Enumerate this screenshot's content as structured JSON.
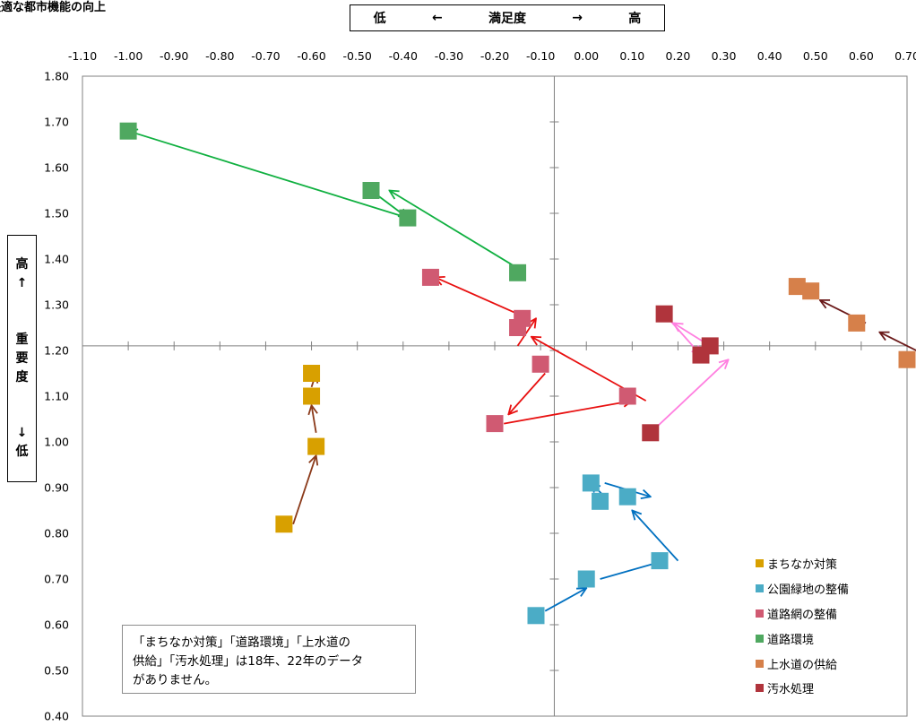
{
  "header": {
    "title": "快適な都市機能の向上",
    "satisfaction": {
      "low": "低",
      "arrow_left": "←",
      "label": "満足度",
      "arrow_right": "→",
      "high": "高"
    },
    "importance": {
      "high": "高",
      "arrow_up": "↑",
      "label_chars": [
        "重",
        "要",
        "度"
      ],
      "arrow_down": "↓",
      "low": "低"
    }
  },
  "note": {
    "lines": [
      "「まちなか対策」「道路環境」「上水道の",
      "供給」「汚水処理」は18年、22年のデータ",
      "がありません。"
    ]
  },
  "chart_data": {
    "type": "scatter",
    "title": "快適な都市機能の向上",
    "xlim": [
      -1.1,
      0.7
    ],
    "ylim": [
      0.4,
      1.8
    ],
    "x_ticks": [
      "-1.10",
      "-1.00",
      "-0.90",
      "-0.80",
      "-0.70",
      "-0.60",
      "-0.50",
      "-0.40",
      "-0.30",
      "-0.20",
      "-0.10",
      "0.00",
      "0.10",
      "0.20",
      "0.30",
      "0.40",
      "0.50",
      "0.60",
      "0.70"
    ],
    "y_ticks": [
      "1.80",
      "1.70",
      "1.60",
      "1.50",
      "1.40",
      "1.30",
      "1.20",
      "1.10",
      "1.00",
      "0.90",
      "0.80",
      "0.70",
      "0.60",
      "0.50",
      "0.40"
    ],
    "axis_cross": {
      "x": -0.07,
      "y": 1.21
    },
    "legend_position": "bottom-right",
    "series": [
      {
        "name": "まちなか対策",
        "color": "#D8A000",
        "arrow_color": "#8B3A1A",
        "points": [
          [
            -0.66,
            0.82
          ],
          [
            -0.59,
            0.99
          ],
          [
            -0.6,
            1.1
          ],
          [
            -0.6,
            1.15
          ]
        ],
        "arrows": [
          [
            -0.64,
            0.82,
            -0.59,
            0.97
          ],
          [
            -0.59,
            1.02,
            -0.6,
            1.08
          ],
          [
            -0.6,
            1.12,
            -0.59,
            1.15
          ]
        ]
      },
      {
        "name": "公園緑地の整備",
        "color": "#4BACC6",
        "arrow_color": "#0070C0",
        "points": [
          [
            -0.11,
            0.62
          ],
          [
            0.0,
            0.7
          ],
          [
            0.16,
            0.74
          ],
          [
            0.09,
            0.88
          ],
          [
            0.03,
            0.87
          ],
          [
            0.01,
            0.91
          ]
        ],
        "arrows": [
          [
            -0.09,
            0.63,
            0.0,
            0.68
          ],
          [
            0.03,
            0.7,
            0.17,
            0.74
          ],
          [
            0.2,
            0.74,
            0.1,
            0.85
          ],
          [
            0.04,
            0.88,
            0.01,
            0.91
          ],
          [
            0.04,
            0.91,
            0.14,
            0.88
          ]
        ]
      },
      {
        "name": "道路網の整備",
        "color": "#D05A72",
        "arrow_color": "#E81010",
        "points": [
          [
            -0.2,
            1.04
          ],
          [
            0.09,
            1.1
          ],
          [
            -0.1,
            1.17
          ],
          [
            -0.15,
            1.25
          ],
          [
            -0.14,
            1.27
          ],
          [
            -0.34,
            1.36
          ]
        ],
        "arrows": [
          [
            -0.18,
            1.04,
            0.1,
            1.09
          ],
          [
            -0.09,
            1.15,
            -0.17,
            1.06
          ],
          [
            0.13,
            1.09,
            -0.12,
            1.23
          ],
          [
            -0.15,
            1.21,
            -0.11,
            1.27
          ],
          [
            -0.15,
            1.28,
            -0.33,
            1.36
          ]
        ]
      },
      {
        "name": "道路環境",
        "color": "#4FA860",
        "arrow_color": "#10B040",
        "points": [
          [
            -1.0,
            1.68
          ],
          [
            -0.47,
            1.55
          ],
          [
            -0.39,
            1.49
          ],
          [
            -0.15,
            1.37
          ]
        ],
        "arrows": [
          [
            -0.15,
            1.38,
            -0.43,
            1.55
          ],
          [
            -0.47,
            1.55,
            -0.39,
            1.49
          ],
          [
            -0.39,
            1.49,
            -1.0,
            1.68
          ]
        ]
      },
      {
        "name": "上水道の供給",
        "color": "#D6804A",
        "arrow_color": "#6B1A1A",
        "points": [
          [
            0.7,
            1.18
          ],
          [
            0.59,
            1.26
          ],
          [
            0.49,
            1.33
          ],
          [
            0.46,
            1.34
          ]
        ],
        "arrows": [
          [
            0.74,
            1.19,
            0.64,
            1.24
          ],
          [
            0.61,
            1.26,
            0.51,
            1.31
          ]
        ]
      },
      {
        "name": "汚水処理",
        "color": "#B0343C",
        "arrow_color": "#FF80E0",
        "points": [
          [
            0.14,
            1.02
          ],
          [
            0.27,
            1.21
          ],
          [
            0.25,
            1.19
          ],
          [
            0.17,
            1.28
          ]
        ],
        "arrows": [
          [
            0.14,
            1.02,
            0.31,
            1.18
          ],
          [
            0.17,
            1.28,
            0.25,
            1.19
          ],
          [
            0.27,
            1.21,
            0.19,
            1.26
          ]
        ]
      }
    ]
  }
}
